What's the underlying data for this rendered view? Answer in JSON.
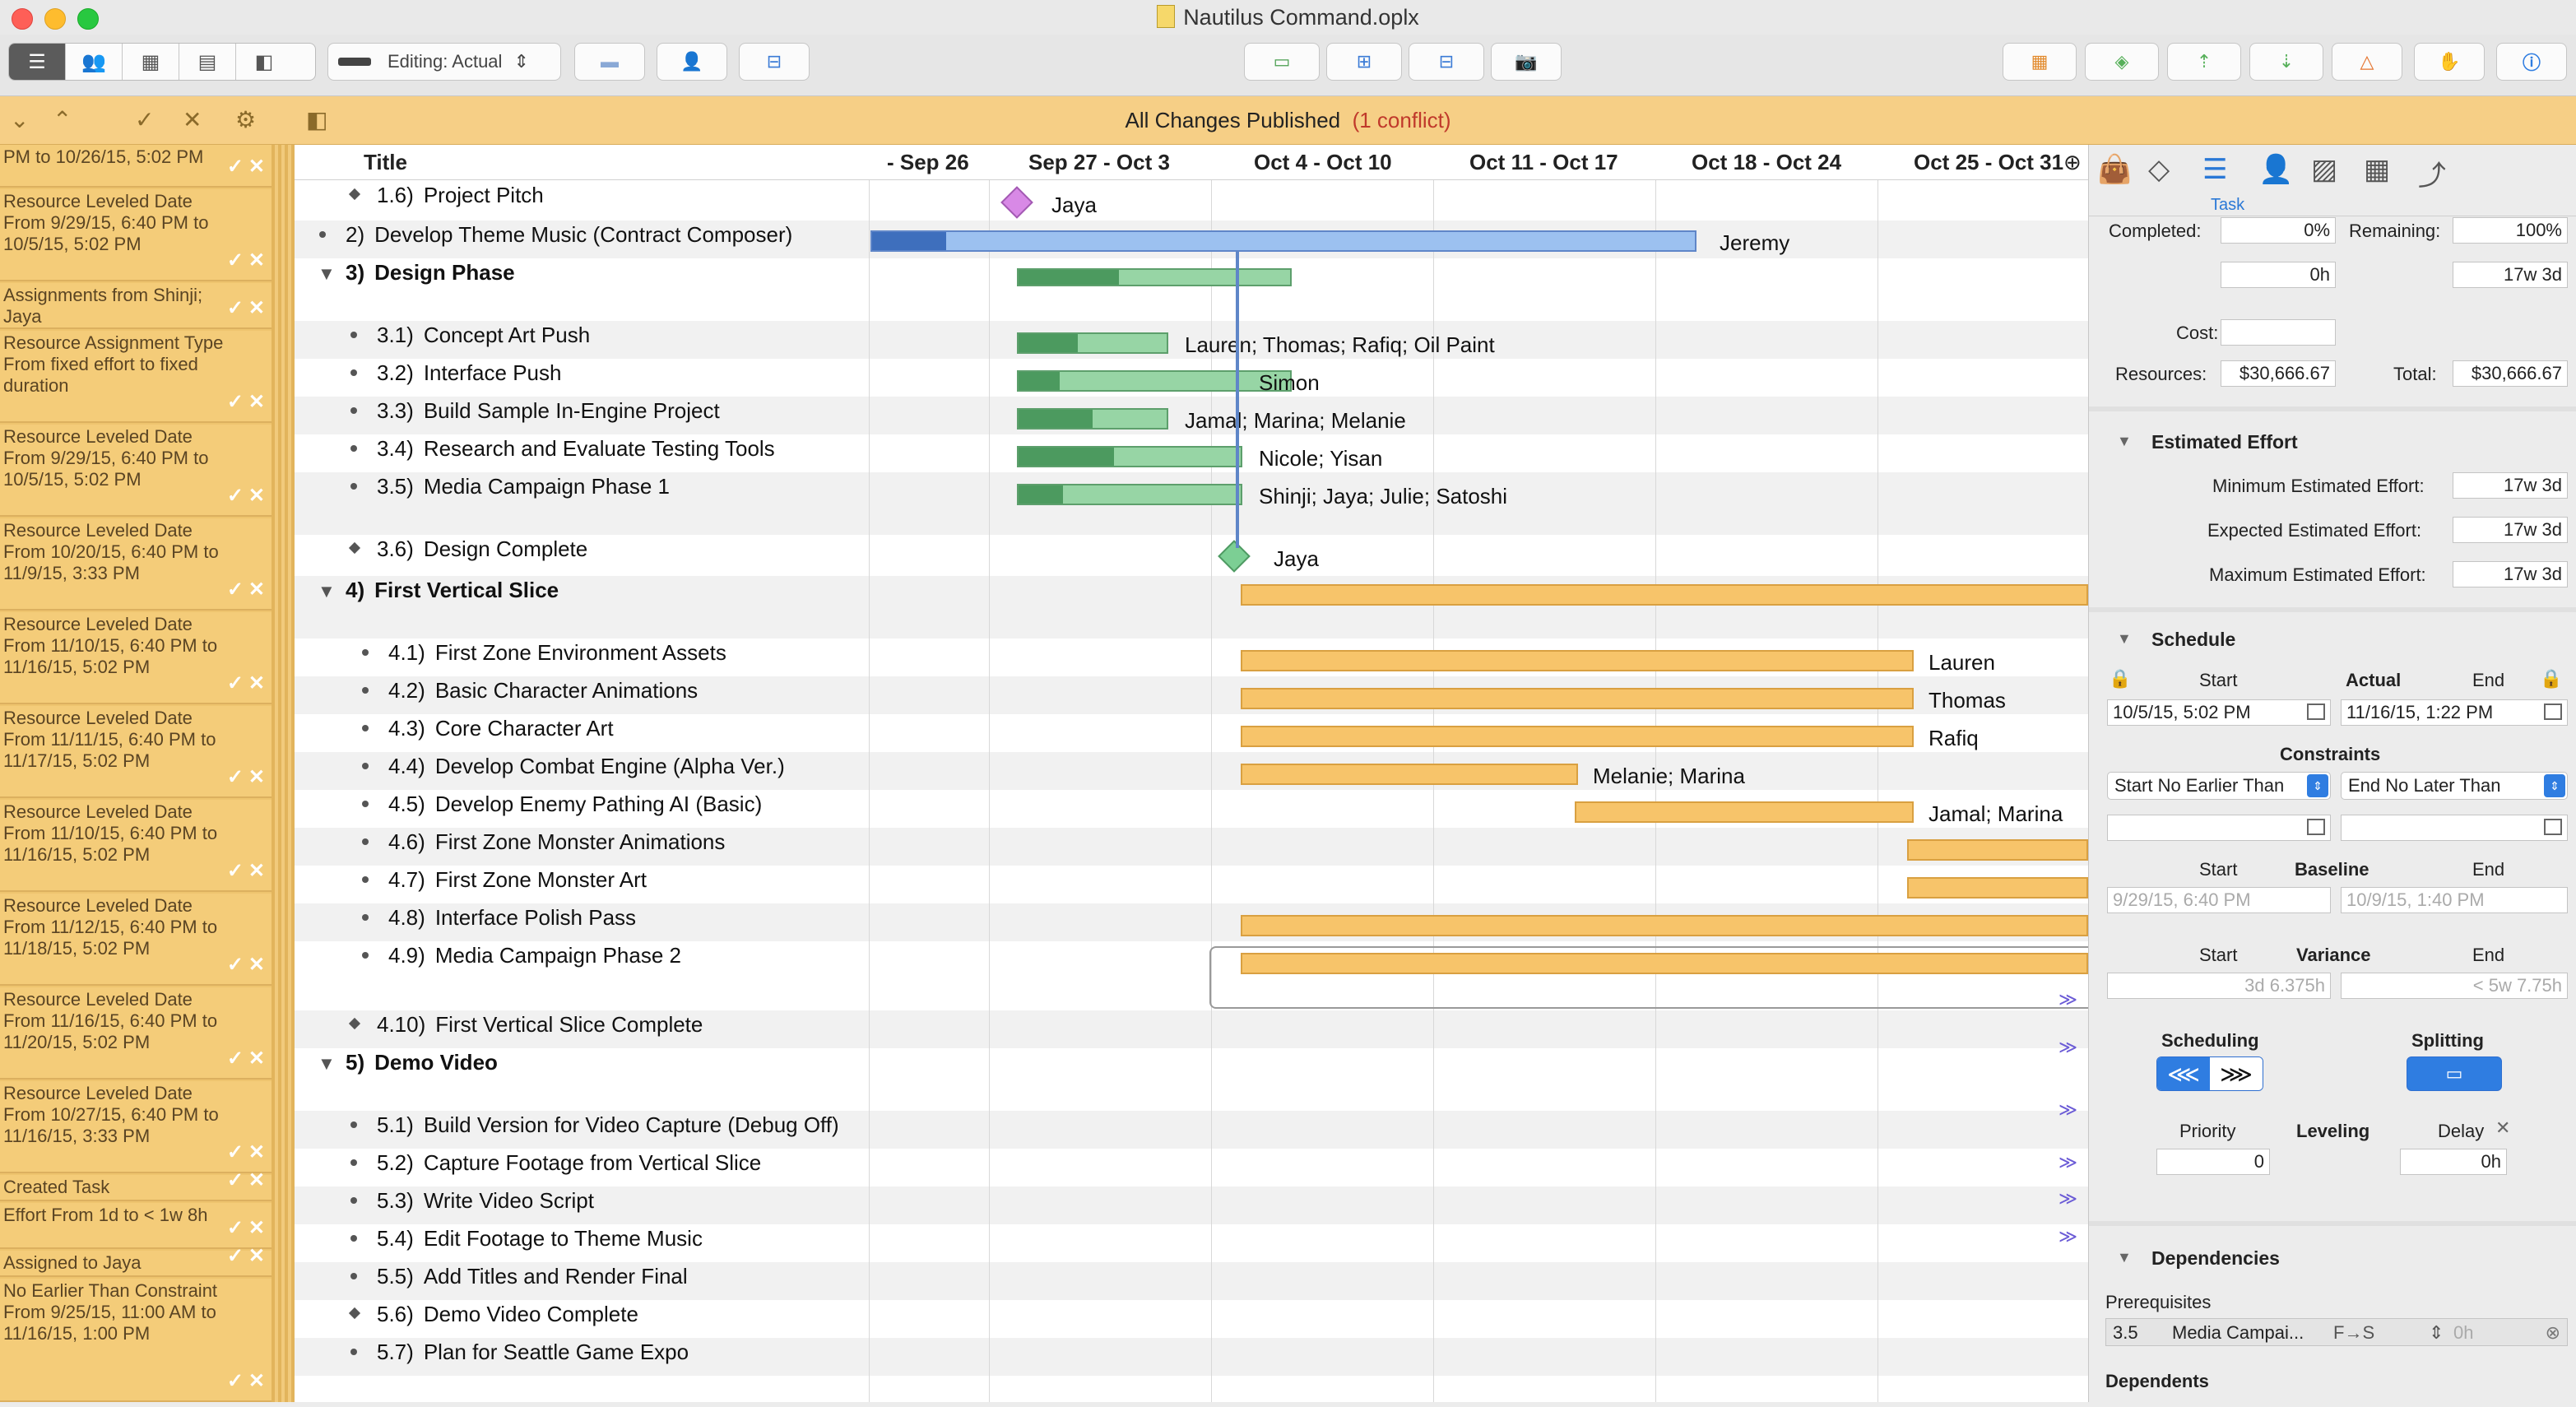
{
  "window": {
    "title": "Nautilus Command.oplx"
  },
  "toolbar": {
    "editing_label": "Editing: Actual"
  },
  "banner": {
    "status": "All Changes Published",
    "conflict": "(1 conflict)"
  },
  "changes": [
    {
      "text": "PM to 10/26/15, 5:02 PM"
    },
    {
      "text": "Resource Leveled Date From 9/29/15, 6:40 PM to 10/5/15, 5:02 PM"
    },
    {
      "text": "Assignments from Shinji; Jaya"
    },
    {
      "text": "Resource Assignment Type From fixed effort to fixed duration"
    },
    {
      "text": "Resource Leveled Date From 9/29/15, 6:40 PM to 10/5/15, 5:02 PM"
    },
    {
      "text": "Resource Leveled Date From 10/20/15, 6:40 PM to 11/9/15, 3:33 PM"
    },
    {
      "text": "Resource Leveled Date From 11/10/15, 6:40 PM to 11/16/15, 5:02 PM"
    },
    {
      "text": "Resource Leveled Date From 11/11/15, 6:40 PM to 11/17/15, 5:02 PM"
    },
    {
      "text": "Resource Leveled Date From 11/10/15, 6:40 PM to 11/16/15, 5:02 PM"
    },
    {
      "text": "Resource Leveled Date From 11/12/15, 6:40 PM to 11/18/15, 5:02 PM"
    },
    {
      "text": "Resource Leveled Date From 11/16/15, 6:40 PM to 11/20/15, 5:02 PM"
    },
    {
      "text": "Resource Leveled Date From 10/27/15, 6:40 PM to 11/16/15, 3:33 PM"
    },
    {
      "text": "Created Task"
    },
    {
      "text": "Effort From 1d to < 1w 8h"
    },
    {
      "text": "Assigned to Jaya"
    },
    {
      "text": "No Earlier Than Constraint From 9/25/15, 11:00 AM to 11/16/15, 1:00 PM"
    }
  ],
  "outline": {
    "title_column": "Title",
    "rows": [
      {
        "num": "1.6)",
        "title": "Project Pitch",
        "resources": "Jaya"
      },
      {
        "num": "2)",
        "title": "Develop Theme Music (Contract Composer)",
        "resources": "Jeremy"
      },
      {
        "num": "3)",
        "title": "Design Phase",
        "resources": ""
      },
      {
        "num": "3.1)",
        "title": "Concept Art Push",
        "resources": "Lauren; Thomas; Rafiq; Oil Paint"
      },
      {
        "num": "3.2)",
        "title": "Interface Push",
        "resources": "Simon"
      },
      {
        "num": "3.3)",
        "title": "Build Sample In-Engine Project",
        "resources": "Jamal; Marina; Melanie"
      },
      {
        "num": "3.4)",
        "title": "Research and Evaluate Testing Tools",
        "resources": "Nicole; Yisan"
      },
      {
        "num": "3.5)",
        "title": "Media Campaign Phase 1",
        "resources": "Shinji; Jaya; Julie; Satoshi"
      },
      {
        "num": "3.6)",
        "title": "Design Complete",
        "resources": "Jaya"
      },
      {
        "num": "4)",
        "title": "First Vertical Slice",
        "resources": ""
      },
      {
        "num": "4.1)",
        "title": "First Zone Environment Assets",
        "resources": "Lauren"
      },
      {
        "num": "4.2)",
        "title": "Basic Character Animations",
        "resources": "Thomas"
      },
      {
        "num": "4.3)",
        "title": "Core Character Art",
        "resources": "Rafiq"
      },
      {
        "num": "4.4)",
        "title": "Develop Combat Engine (Alpha Ver.)",
        "resources": "Melanie; Marina"
      },
      {
        "num": "4.5)",
        "title": "Develop Enemy Pathing AI (Basic)",
        "resources": "Jamal; Marina"
      },
      {
        "num": "4.6)",
        "title": "First Zone Monster Animations",
        "resources": ""
      },
      {
        "num": "4.7)",
        "title": "First Zone Monster Art",
        "resources": ""
      },
      {
        "num": "4.8)",
        "title": "Interface Polish Pass",
        "resources": ""
      },
      {
        "num": "4.9)",
        "title": "Media Campaign Phase 2",
        "resources": ""
      },
      {
        "num": "4.10)",
        "title": "First Vertical Slice Complete",
        "resources": ""
      },
      {
        "num": "5)",
        "title": "Demo Video",
        "resources": ""
      },
      {
        "num": "5.1)",
        "title": "Build Version for Video Capture (Debug Off)",
        "resources": ""
      },
      {
        "num": "5.2)",
        "title": "Capture Footage from Vertical Slice",
        "resources": ""
      },
      {
        "num": "5.3)",
        "title": "Write Video Script",
        "resources": ""
      },
      {
        "num": "5.4)",
        "title": "Edit Footage to Theme Music",
        "resources": ""
      },
      {
        "num": "5.5)",
        "title": "Add Titles and Render Final",
        "resources": ""
      },
      {
        "num": "5.6)",
        "title": "Demo Video Complete",
        "resources": ""
      },
      {
        "num": "5.7)",
        "title": "Plan for Seattle Game Expo",
        "resources": ""
      }
    ]
  },
  "gantt": {
    "weeks": [
      "- Sep 26",
      "Sep 27 - Oct 3",
      "Oct 4 - Oct 10",
      "Oct 11 - Oct 17",
      "Oct 18 - Oct 24",
      "Oct 25 - Oct 31"
    ],
    "progress": {
      "develop_theme_music": 0.09,
      "design_phase": 0.37,
      "concept_art": 0.4,
      "interface_push": 0.15,
      "build_sample": 0.5,
      "research_tools": 0.43,
      "media_phase1": 0.2
    },
    "colors": {
      "task_green": "#97d5a5",
      "progress_green": "#4c9a5f",
      "task_orange": "#f7c46a",
      "task_blue": "#9cc1f0",
      "progress_blue": "#3e6fbd",
      "milestone_pink": "#d889e6",
      "milestone_green": "#7ccf94",
      "chevron": "#6b5bd6"
    }
  },
  "inspector": {
    "active_tab": "Task",
    "completed_label": "Completed:",
    "completed": "0%",
    "remaining_label": "Remaining:",
    "remaining": "100%",
    "completed_effort": "0h",
    "remaining_effort": "17w 3d",
    "cost_label": "Cost:",
    "cost": "",
    "resources_label": "Resources:",
    "resources": "$30,666.67",
    "total_label": "Total:",
    "total": "$30,666.67",
    "estimated_effort": {
      "title": "Estimated Effort",
      "min_label": "Minimum Estimated Effort:",
      "min": "17w 3d",
      "exp_label": "Expected Estimated Effort:",
      "exp": "17w 3d",
      "max_label": "Maximum Estimated Effort:",
      "max": "17w 3d"
    },
    "schedule": {
      "title": "Schedule",
      "start_label": "Start",
      "actual_label": "Actual",
      "end_label": "End",
      "actual_start": "10/5/15, 5:02 PM",
      "actual_end": "11/16/15, 1:22 PM",
      "constraints_label": "Constraints",
      "constraint_start": "Start No Earlier Than",
      "constraint_end": "End No Later Than",
      "baseline_label": "Baseline",
      "baseline_start": "9/29/15, 6:40 PM",
      "baseline_end": "10/9/15, 1:40 PM",
      "variance_label": "Variance",
      "variance_start": "3d 6.375h",
      "variance_end": "< 5w 7.75h",
      "scheduling_label": "Scheduling",
      "splitting_label": "Splitting",
      "priority_label": "Priority",
      "priority": "0",
      "leveling_label": "Leveling",
      "delay_label": "Delay",
      "delay": "0h"
    },
    "dependencies": {
      "title": "Dependencies",
      "prerequisites_label": "Prerequisites",
      "prereq_id": "3.5",
      "prereq_name": "Media Campai...",
      "prereq_type": "F→S",
      "prereq_lag": "0h",
      "dependents_label": "Dependents"
    }
  }
}
